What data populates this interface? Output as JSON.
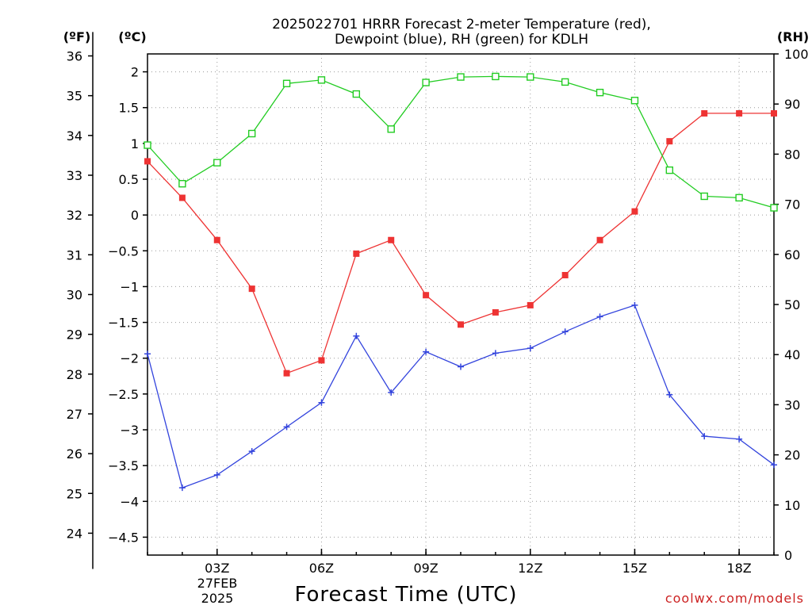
{
  "chart_data": {
    "type": "line",
    "title_lines": [
      "2025022701 HRRR Forecast 2-meter Temperature (red),",
      "Dewpoint (blue), RH (green) for KDLH"
    ],
    "xlabel": "Forecast Time (UTC)",
    "x_hours": [
      1,
      2,
      3,
      4,
      5,
      6,
      7,
      8,
      9,
      10,
      11,
      12,
      13,
      14,
      15,
      16,
      17,
      18,
      19
    ],
    "x_range": [
      1,
      19
    ],
    "x_ticks": [
      {
        "hour": 3,
        "label": "03Z"
      },
      {
        "hour": 6,
        "label": "06Z"
      },
      {
        "hour": 9,
        "label": "09Z"
      },
      {
        "hour": 12,
        "label": "12Z"
      },
      {
        "hour": 15,
        "label": "15Z"
      },
      {
        "hour": 18,
        "label": "18Z"
      }
    ],
    "x_date_lines": [
      "27FEB",
      "2025"
    ],
    "axes": {
      "fahrenheit": {
        "unit_label": "(ºF)",
        "ticks": [
          24,
          25,
          26,
          27,
          28,
          29,
          30,
          31,
          32,
          33,
          34,
          35,
          36
        ]
      },
      "celsius": {
        "unit_label": "(ºC)",
        "ticks": [
          -4.5,
          -4,
          -3.5,
          -3,
          -2.5,
          -2,
          -1.5,
          -1,
          -0.5,
          0,
          0.5,
          1,
          1.5,
          2
        ],
        "range": [
          -4.75,
          2.25
        ]
      },
      "rh": {
        "unit_label": "(RH)",
        "ticks": [
          0,
          10,
          20,
          30,
          40,
          50,
          60,
          70,
          80,
          90,
          100
        ],
        "range": [
          0,
          100
        ]
      }
    },
    "series": [
      {
        "name": "Temperature",
        "axis": "celsius",
        "color": "#ee3333",
        "marker": "filled-square",
        "values": [
          0.75,
          0.24,
          -0.35,
          -1.03,
          -2.21,
          -2.03,
          -0.54,
          -0.35,
          -1.12,
          -1.53,
          -1.36,
          -1.26,
          -0.84,
          -0.35,
          0.05,
          1.03,
          1.42,
          1.42,
          1.42
        ]
      },
      {
        "name": "Dewpoint",
        "axis": "celsius",
        "color": "#3344dd",
        "marker": "plus",
        "values": [
          -1.94,
          -3.81,
          -3.63,
          -3.3,
          -2.96,
          -2.62,
          -1.69,
          -2.48,
          -1.91,
          -2.12,
          -1.93,
          -1.86,
          -1.63,
          -1.42,
          -1.26,
          -2.51,
          -3.09,
          -3.13,
          -3.49
        ]
      },
      {
        "name": "RH",
        "axis": "rh",
        "color": "#22cc22",
        "marker": "open-square",
        "values": [
          81.8,
          74.1,
          78.3,
          84.1,
          94.1,
          94.8,
          92.0,
          85.0,
          94.3,
          95.4,
          95.5,
          95.4,
          94.4,
          92.3,
          90.7,
          76.8,
          71.6,
          71.3,
          69.3
        ]
      }
    ],
    "grid": true
  },
  "watermark": "coolwx.com/models",
  "colors": {
    "background": "#ffffff",
    "axis": "#000000",
    "grid": "#9a9a9a",
    "watermark": "#cc2222"
  }
}
